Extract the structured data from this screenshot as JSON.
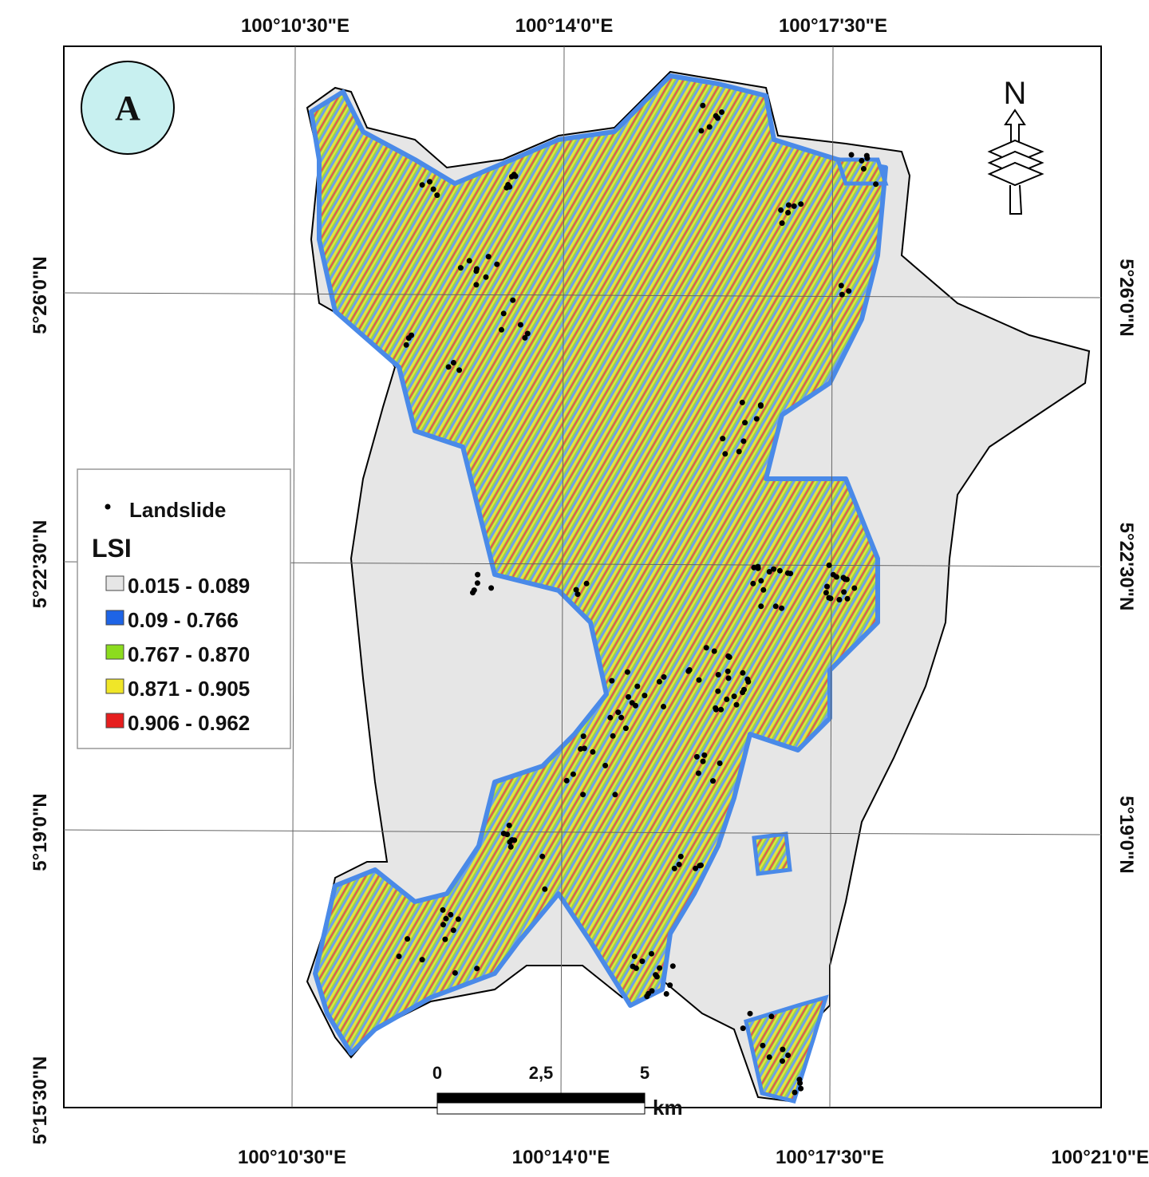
{
  "panel_label": "A",
  "north_symbol": "N",
  "top_labels": [
    "100°10'30\"E",
    "100°14'0\"E",
    "100°17'30\"E"
  ],
  "bottom_labels": [
    "100°10'30\"E",
    "100°14'0\"E",
    "100°17'30\"E",
    "100°21'0\"E"
  ],
  "left_labels": [
    "5°26'0\"N",
    "5°22'30\"N",
    "5°19'0\"N",
    "5°15'30\"N"
  ],
  "right_labels": [
    "5°26'0\"N",
    "5°22'30\"N",
    "5°19'0\"N"
  ],
  "legend": {
    "point_label": "Landslide",
    "title": "LSI",
    "classes": [
      {
        "label": "0.015 - 0.089",
        "color": "#e6e6e6"
      },
      {
        "label": "0.09 - 0.766",
        "color": "#1e64e6"
      },
      {
        "label": "0.767 - 0.870",
        "color": "#8cdc1e"
      },
      {
        "label": "0.871 - 0.905",
        "color": "#f0e628"
      },
      {
        "label": "0.906 - 0.962",
        "color": "#e61e1e"
      }
    ]
  },
  "scale_bar": {
    "labels": [
      "0",
      "2,5",
      "5"
    ],
    "unit": "km"
  }
}
